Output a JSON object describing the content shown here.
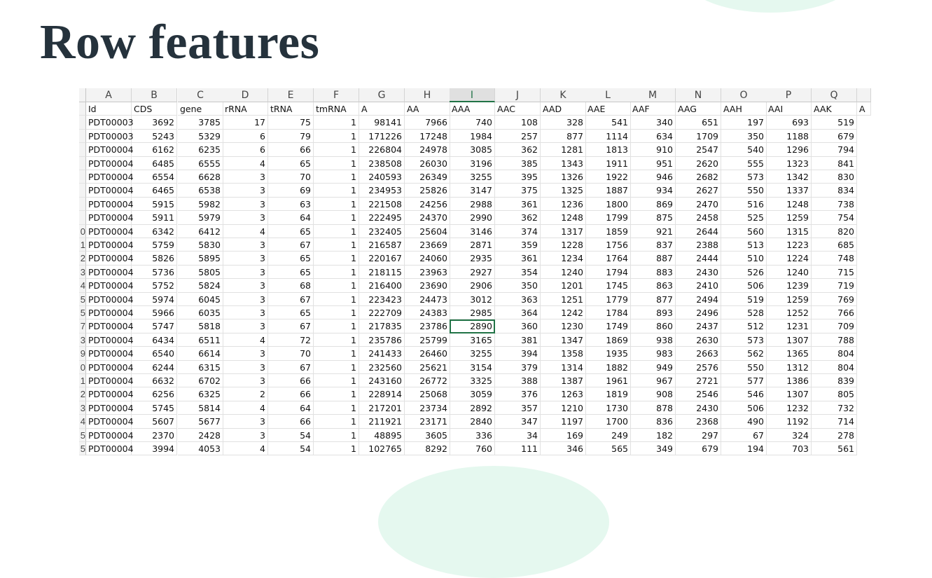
{
  "slide": {
    "title": "Row features"
  },
  "sheet": {
    "columns": [
      "A",
      "B",
      "C",
      "D",
      "E",
      "F",
      "G",
      "H",
      "I",
      "J",
      "K",
      "L",
      "M",
      "N",
      "O",
      "P",
      "Q"
    ],
    "selected_column": "I",
    "active_cell": {
      "row": 16,
      "col": 8
    },
    "header_row": [
      "Id",
      "CDS",
      "gene",
      "rRNA",
      "tRNA",
      "tmRNA",
      "A",
      "AA",
      "AAA",
      "AAC",
      "AAD",
      "AAE",
      "AAF",
      "AAG",
      "AAH",
      "AAI",
      "AAK"
    ],
    "overflow_header": "A",
    "row_numbers": [
      "",
      "",
      "",
      "",
      "",
      "",
      "",
      "",
      "",
      "0",
      "1",
      "2",
      "3",
      "4",
      "5",
      "5",
      "7",
      "3",
      "9",
      "0",
      "1",
      "2",
      "3",
      "4",
      "5",
      "5"
    ],
    "rows": [
      [
        "PDT00003",
        "3692",
        "3785",
        "17",
        "75",
        "1",
        "98141",
        "7966",
        "740",
        "108",
        "328",
        "541",
        "340",
        "651",
        "197",
        "693",
        "519"
      ],
      [
        "PDT00003",
        "5243",
        "5329",
        "6",
        "79",
        "1",
        "171226",
        "17248",
        "1984",
        "257",
        "877",
        "1114",
        "634",
        "1709",
        "350",
        "1188",
        "679"
      ],
      [
        "PDT00004",
        "6162",
        "6235",
        "6",
        "66",
        "1",
        "226804",
        "24978",
        "3085",
        "362",
        "1281",
        "1813",
        "910",
        "2547",
        "540",
        "1296",
        "794"
      ],
      [
        "PDT00004",
        "6485",
        "6555",
        "4",
        "65",
        "1",
        "238508",
        "26030",
        "3196",
        "385",
        "1343",
        "1911",
        "951",
        "2620",
        "555",
        "1323",
        "841"
      ],
      [
        "PDT00004",
        "6554",
        "6628",
        "3",
        "70",
        "1",
        "240593",
        "26349",
        "3255",
        "395",
        "1326",
        "1922",
        "946",
        "2682",
        "573",
        "1342",
        "830"
      ],
      [
        "PDT00004",
        "6465",
        "6538",
        "3",
        "69",
        "1",
        "234953",
        "25826",
        "3147",
        "375",
        "1325",
        "1887",
        "934",
        "2627",
        "550",
        "1337",
        "834"
      ],
      [
        "PDT00004",
        "5915",
        "5982",
        "3",
        "63",
        "1",
        "221508",
        "24256",
        "2988",
        "361",
        "1236",
        "1800",
        "869",
        "2470",
        "516",
        "1248",
        "738"
      ],
      [
        "PDT00004",
        "5911",
        "5979",
        "3",
        "64",
        "1",
        "222495",
        "24370",
        "2990",
        "362",
        "1248",
        "1799",
        "875",
        "2458",
        "525",
        "1259",
        "754"
      ],
      [
        "PDT00004",
        "6342",
        "6412",
        "4",
        "65",
        "1",
        "232405",
        "25604",
        "3146",
        "374",
        "1317",
        "1859",
        "921",
        "2644",
        "560",
        "1315",
        "820"
      ],
      [
        "PDT00004",
        "5759",
        "5830",
        "3",
        "67",
        "1",
        "216587",
        "23669",
        "2871",
        "359",
        "1228",
        "1756",
        "837",
        "2388",
        "513",
        "1223",
        "685"
      ],
      [
        "PDT00004",
        "5826",
        "5895",
        "3",
        "65",
        "1",
        "220167",
        "24060",
        "2935",
        "361",
        "1234",
        "1764",
        "887",
        "2444",
        "510",
        "1224",
        "748"
      ],
      [
        "PDT00004",
        "5736",
        "5805",
        "3",
        "65",
        "1",
        "218115",
        "23963",
        "2927",
        "354",
        "1240",
        "1794",
        "883",
        "2430",
        "526",
        "1240",
        "715"
      ],
      [
        "PDT00004",
        "5752",
        "5824",
        "3",
        "68",
        "1",
        "216400",
        "23690",
        "2906",
        "350",
        "1201",
        "1745",
        "863",
        "2410",
        "506",
        "1239",
        "719"
      ],
      [
        "PDT00004",
        "5974",
        "6045",
        "3",
        "67",
        "1",
        "223423",
        "24473",
        "3012",
        "363",
        "1251",
        "1779",
        "877",
        "2494",
        "519",
        "1259",
        "769"
      ],
      [
        "PDT00004",
        "5966",
        "6035",
        "3",
        "65",
        "1",
        "222709",
        "24383",
        "2985",
        "364",
        "1242",
        "1784",
        "893",
        "2496",
        "528",
        "1252",
        "766"
      ],
      [
        "PDT00004",
        "5747",
        "5818",
        "3",
        "67",
        "1",
        "217835",
        "23786",
        "2890",
        "360",
        "1230",
        "1749",
        "860",
        "2437",
        "512",
        "1231",
        "709"
      ],
      [
        "PDT00004",
        "6434",
        "6511",
        "4",
        "72",
        "1",
        "235786",
        "25799",
        "3165",
        "381",
        "1347",
        "1869",
        "938",
        "2630",
        "573",
        "1307",
        "788"
      ],
      [
        "PDT00004",
        "6540",
        "6614",
        "3",
        "70",
        "1",
        "241433",
        "26460",
        "3255",
        "394",
        "1358",
        "1935",
        "983",
        "2663",
        "562",
        "1365",
        "804"
      ],
      [
        "PDT00004",
        "6244",
        "6315",
        "3",
        "67",
        "1",
        "232560",
        "25621",
        "3154",
        "379",
        "1314",
        "1882",
        "949",
        "2576",
        "550",
        "1312",
        "804"
      ],
      [
        "PDT00004",
        "6632",
        "6702",
        "3",
        "66",
        "1",
        "243160",
        "26772",
        "3325",
        "388",
        "1387",
        "1961",
        "967",
        "2721",
        "577",
        "1386",
        "839"
      ],
      [
        "PDT00004",
        "6256",
        "6325",
        "2",
        "66",
        "1",
        "228914",
        "25068",
        "3059",
        "376",
        "1263",
        "1819",
        "908",
        "2546",
        "546",
        "1307",
        "805"
      ],
      [
        "PDT00004",
        "5745",
        "5814",
        "4",
        "64",
        "1",
        "217201",
        "23734",
        "2892",
        "357",
        "1210",
        "1730",
        "878",
        "2430",
        "506",
        "1232",
        "732"
      ],
      [
        "PDT00004",
        "5607",
        "5677",
        "3",
        "66",
        "1",
        "211921",
        "23171",
        "2840",
        "347",
        "1197",
        "1700",
        "836",
        "2368",
        "490",
        "1192",
        "714"
      ],
      [
        "PDT00004",
        "2370",
        "2428",
        "3",
        "54",
        "1",
        "48895",
        "3605",
        "336",
        "34",
        "169",
        "249",
        "182",
        "297",
        "67",
        "324",
        "278"
      ],
      [
        "PDT00004",
        "3994",
        "4053",
        "4",
        "54",
        "1",
        "102765",
        "8292",
        "760",
        "111",
        "346",
        "565",
        "349",
        "679",
        "194",
        "703",
        "561"
      ]
    ]
  }
}
